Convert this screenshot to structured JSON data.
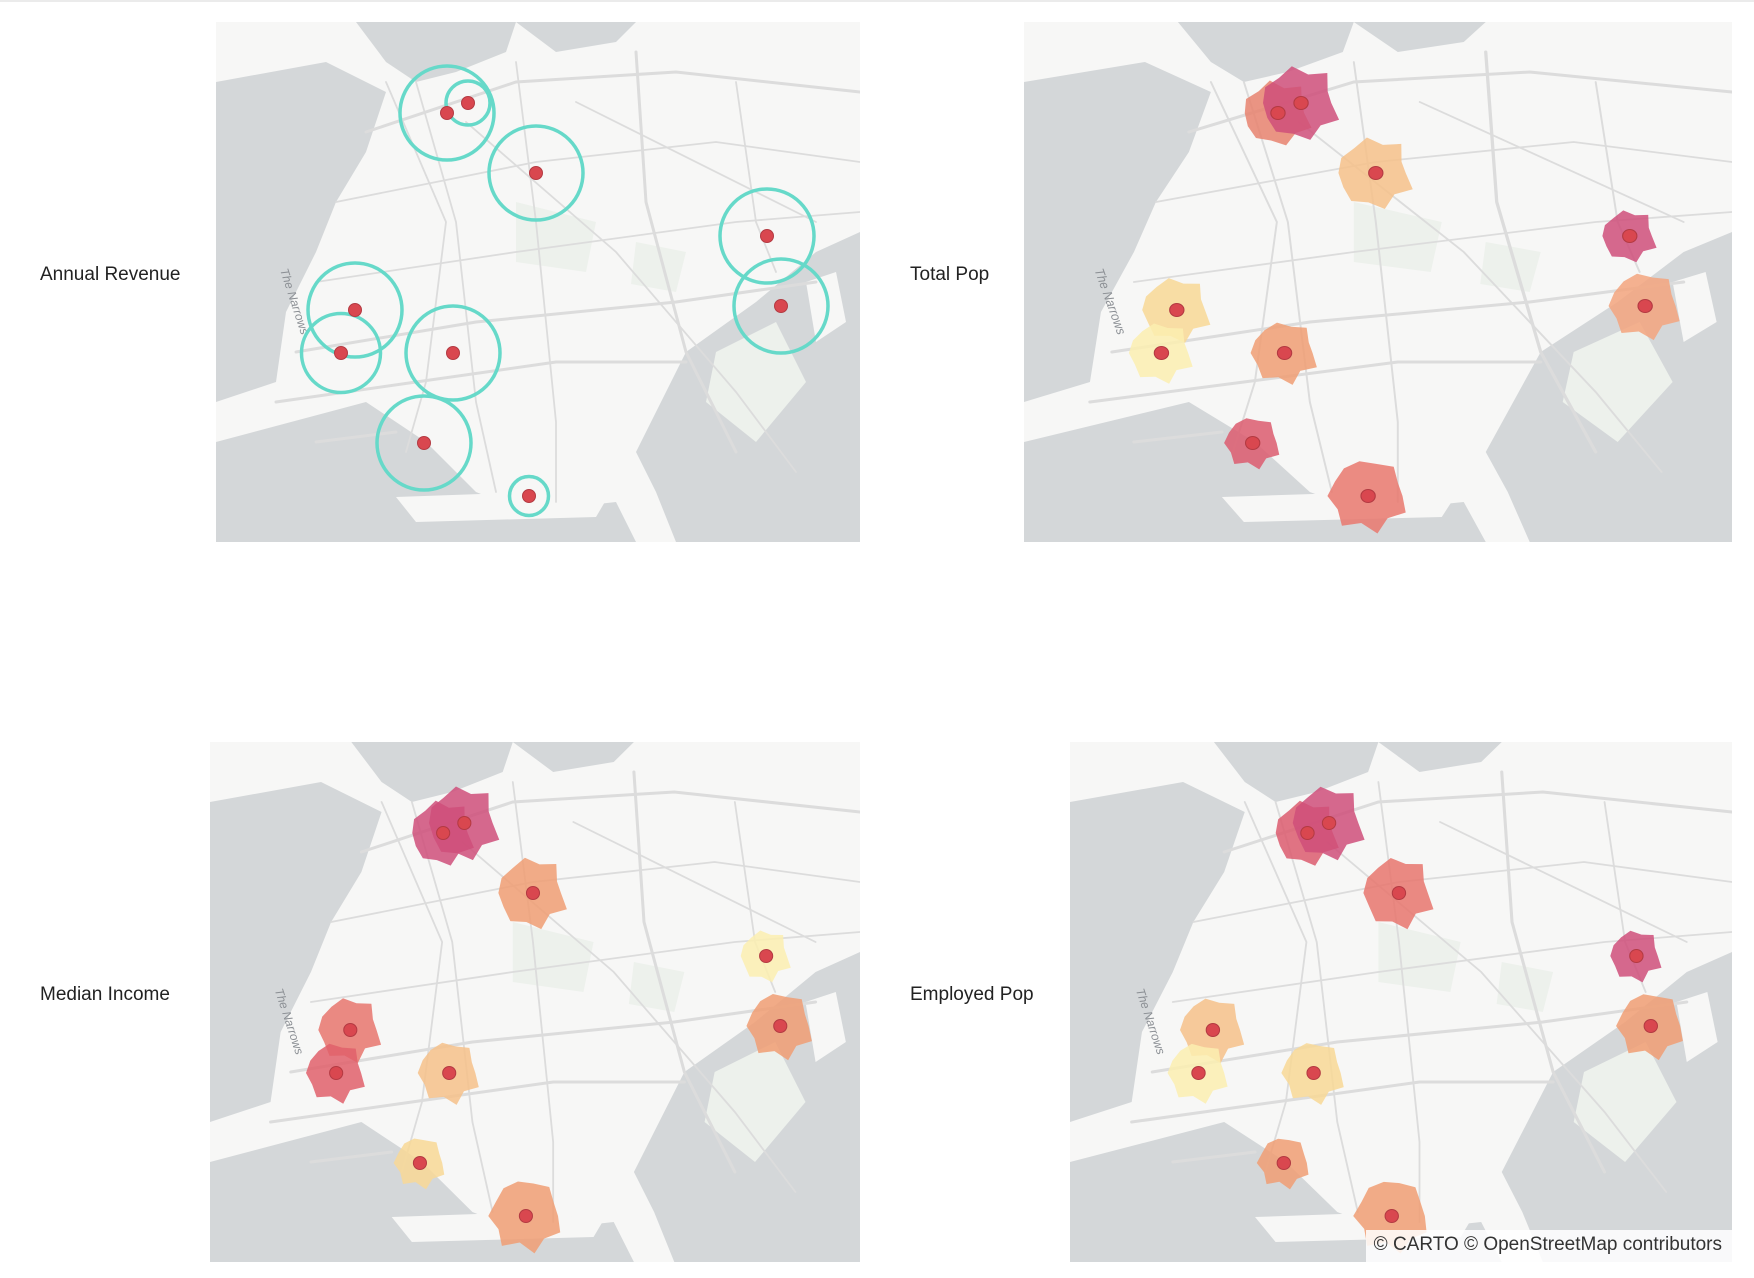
{
  "panels": [
    {
      "id": "annual-revenue",
      "label": "Annual Revenue",
      "style": "buffers",
      "point_color": "#d9474f",
      "buffer_color": "#66d9c9",
      "features": [
        {
          "name": "site-1",
          "fill": "#66d9c9",
          "buffer": 0.7
        },
        {
          "name": "site-2",
          "fill": "#66d9c9",
          "buffer": 0.2
        },
        {
          "name": "site-3",
          "fill": "#66d9c9",
          "buffer": 0.7
        },
        {
          "name": "site-4",
          "fill": "#66d9c9",
          "buffer": 0.7
        },
        {
          "name": "site-5",
          "fill": "#66d9c9",
          "buffer": 0.7
        },
        {
          "name": "site-6",
          "fill": "#66d9c9",
          "buffer": 0.55
        },
        {
          "name": "site-7",
          "fill": "#66d9c9",
          "buffer": 0.7
        },
        {
          "name": "site-8",
          "fill": "#66d9c9",
          "buffer": 0.7
        },
        {
          "name": "site-9",
          "fill": "#66d9c9",
          "buffer": 0.7
        },
        {
          "name": "site-10",
          "fill": "#66d9c9",
          "buffer": 0.15
        }
      ]
    },
    {
      "id": "total-pop",
      "label": "Total Pop",
      "style": "isochrones",
      "point_color": "#d9474f",
      "features": [
        {
          "name": "site-1",
          "fill": "#e8836f"
        },
        {
          "name": "site-2",
          "fill": "#cf4f7a"
        },
        {
          "name": "site-3",
          "fill": "#f6c18a"
        },
        {
          "name": "site-4",
          "fill": "#cf4f7a"
        },
        {
          "name": "site-5",
          "fill": "#f8d895"
        },
        {
          "name": "site-6",
          "fill": "#fcefb0"
        },
        {
          "name": "site-7",
          "fill": "#f09e73"
        },
        {
          "name": "site-8",
          "fill": "#f3a47e"
        },
        {
          "name": "site-9",
          "fill": "#dc5c6e"
        },
        {
          "name": "site-10",
          "fill": "#e9786d"
        }
      ]
    },
    {
      "id": "median-income",
      "label": "Median Income",
      "style": "isochrones",
      "point_color": "#d9474f",
      "features": [
        {
          "name": "site-1",
          "fill": "#cf4f7a"
        },
        {
          "name": "site-2",
          "fill": "#cf4f7a"
        },
        {
          "name": "site-3",
          "fill": "#f09e73"
        },
        {
          "name": "site-4",
          "fill": "#fcefb0"
        },
        {
          "name": "site-5",
          "fill": "#e8766d"
        },
        {
          "name": "site-6",
          "fill": "#e0606b"
        },
        {
          "name": "site-7",
          "fill": "#f6c18a"
        },
        {
          "name": "site-8",
          "fill": "#f09e73"
        },
        {
          "name": "site-9",
          "fill": "#f8d895"
        },
        {
          "name": "site-10",
          "fill": "#f09e73"
        }
      ]
    },
    {
      "id": "employed-pop",
      "label": "Employed Pop",
      "style": "isochrones",
      "point_color": "#d9474f",
      "features": [
        {
          "name": "site-1",
          "fill": "#dc5c6e"
        },
        {
          "name": "site-2",
          "fill": "#cf4f7a"
        },
        {
          "name": "site-3",
          "fill": "#e8766d"
        },
        {
          "name": "site-4",
          "fill": "#cf4f7a"
        },
        {
          "name": "site-5",
          "fill": "#f6c18a"
        },
        {
          "name": "site-6",
          "fill": "#fcefb0"
        },
        {
          "name": "site-7",
          "fill": "#f8d895"
        },
        {
          "name": "site-8",
          "fill": "#f09e73"
        },
        {
          "name": "site-9",
          "fill": "#f09e73"
        },
        {
          "name": "site-10",
          "fill": "#f09e73"
        }
      ]
    }
  ],
  "basemap": {
    "water_color": "#d4d7d9",
    "land_color": "#f7f7f6",
    "park_color": "#edf1ec",
    "road_color": "#dcdcdc",
    "water_label": "The Narrows"
  },
  "attribution": "© CARTO © OpenStreetMap contributors"
}
